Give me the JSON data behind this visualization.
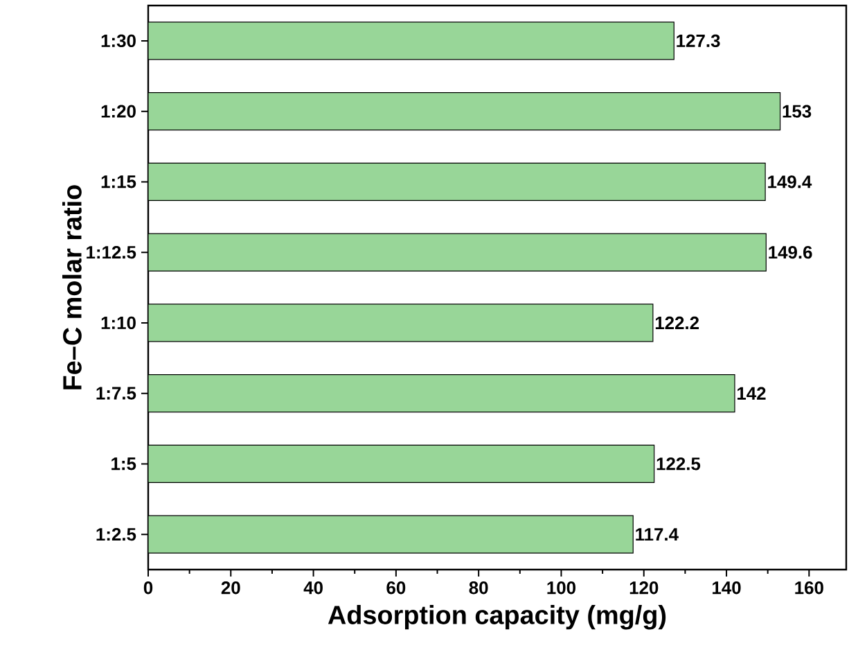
{
  "chart_data": {
    "type": "bar",
    "orientation": "horizontal",
    "xlabel": "Adsorption capacity (mg/g)",
    "ylabel": "Fe–C molar ratio",
    "categories": [
      "1:30",
      "1:20",
      "1:15",
      "1:12.5",
      "1:10",
      "1:7.5",
      "1:5",
      "1:2.5"
    ],
    "values": [
      127.3,
      153,
      149.4,
      149.6,
      122.2,
      142,
      122.5,
      117.4
    ],
    "color": "#98d698",
    "data_labels": true,
    "grid": false,
    "xlim": [
      0,
      169
    ],
    "xticks": [
      0,
      20,
      40,
      60,
      80,
      100,
      120,
      140,
      160
    ]
  }
}
